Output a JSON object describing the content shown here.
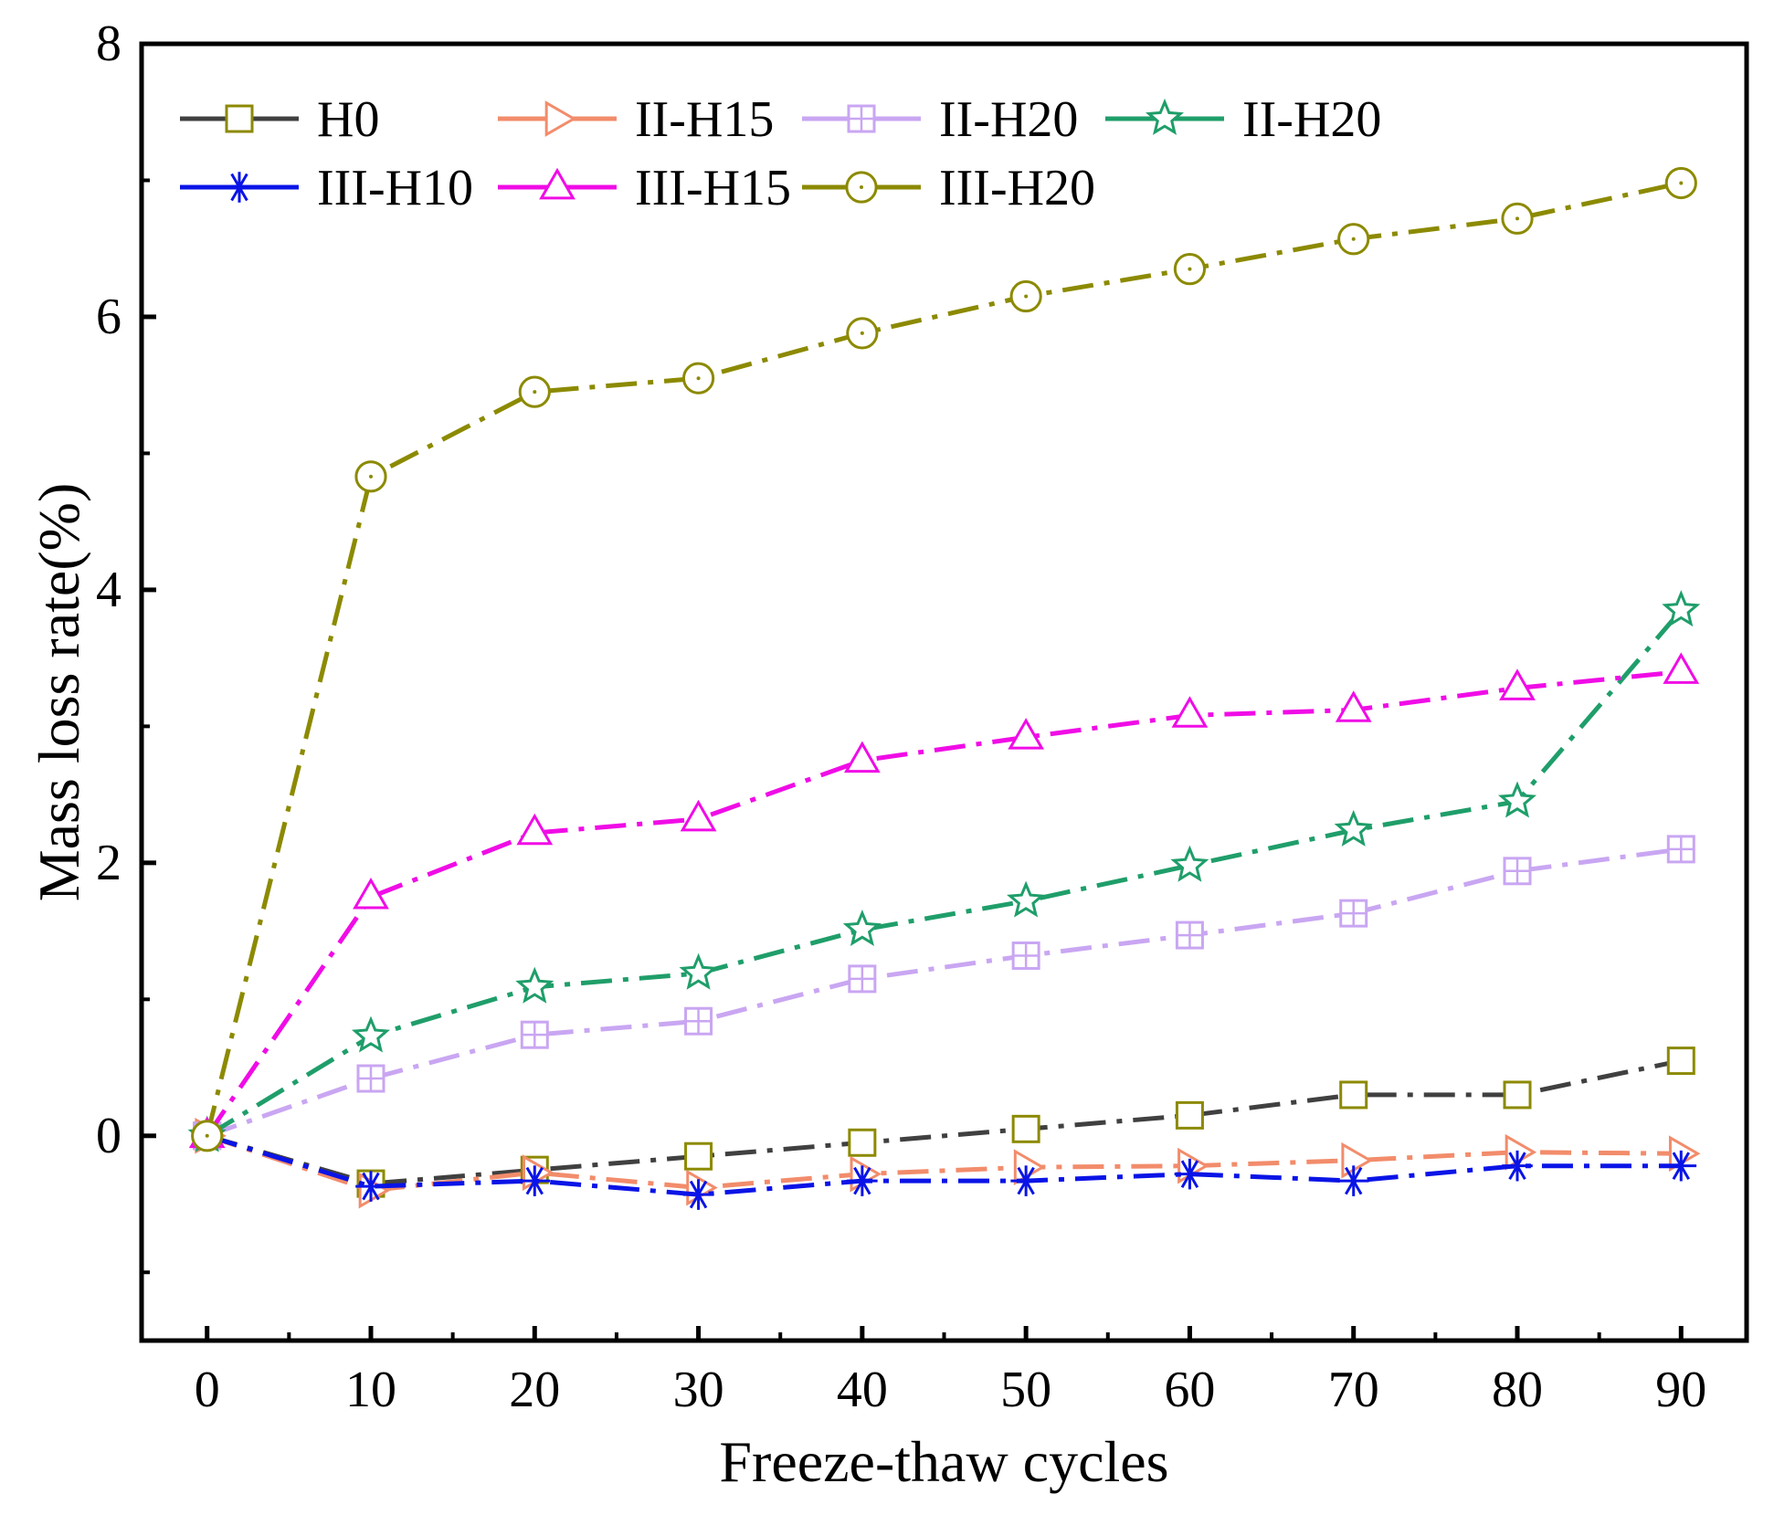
{
  "chart_data": {
    "type": "line",
    "title": "",
    "xlabel": "Freeze-thaw cycles",
    "ylabel": "Mass loss rate(%)",
    "xlim": [
      -4,
      94
    ],
    "ylim": [
      -1.5,
      8
    ],
    "x": [
      0,
      10,
      20,
      30,
      40,
      50,
      60,
      70,
      80,
      90
    ],
    "xticks": [
      0,
      10,
      20,
      30,
      40,
      50,
      60,
      70,
      80,
      90
    ],
    "xtick_labels": [
      "0",
      "10",
      "20",
      "30",
      "40",
      "50",
      "60",
      "70",
      "80",
      "90"
    ],
    "yticks": [
      0,
      2,
      4,
      6,
      8
    ],
    "ytick_labels": [
      "0",
      "2",
      "4",
      "6",
      "8"
    ],
    "grid": false,
    "legend_position": "top-left",
    "series": [
      {
        "name": "H0",
        "marker": "square",
        "line_color": "#404040",
        "marker_color": "#8c8a00",
        "dash": "dashdot",
        "values": [
          0,
          -0.35,
          -0.25,
          -0.15,
          -0.05,
          0.05,
          0.15,
          0.3,
          0.3,
          0.55
        ]
      },
      {
        "name": "II-H15",
        "marker": "triangle-right",
        "line_color": "#f28c6b",
        "marker_color": "#f28c6b",
        "dash": "dashdot",
        "values": [
          0,
          -0.4,
          -0.27,
          -0.38,
          -0.28,
          -0.23,
          -0.22,
          -0.18,
          -0.12,
          -0.13
        ]
      },
      {
        "name": "II-H20",
        "marker": "square-plus",
        "line_color": "#c9a6f2",
        "marker_color": "#c9a6f2",
        "dash": "dashdot",
        "values": [
          0,
          0.42,
          0.74,
          0.84,
          1.15,
          1.32,
          1.47,
          1.63,
          1.94,
          2.1
        ]
      },
      {
        "name": "II-H20",
        "marker": "star",
        "line_color": "#1f9e6a",
        "marker_color": "#1f9e6a",
        "dash": "dashdot",
        "values": [
          0,
          0.73,
          1.09,
          1.19,
          1.51,
          1.72,
          1.98,
          2.24,
          2.45,
          3.85
        ]
      },
      {
        "name": "III-H10",
        "marker": "asterisk",
        "line_color": "#0a14e6",
        "marker_color": "#0a14e6",
        "dash": "dashdot",
        "values": [
          0,
          -0.37,
          -0.33,
          -0.43,
          -0.33,
          -0.33,
          -0.28,
          -0.33,
          -0.22,
          -0.22
        ]
      },
      {
        "name": "III-H15",
        "marker": "triangle-up",
        "line_color": "#f00ce6",
        "marker_color": "#f00ce6",
        "dash": "dashdot",
        "values": [
          0,
          1.75,
          2.22,
          2.32,
          2.75,
          2.92,
          3.08,
          3.12,
          3.28,
          3.4
        ]
      },
      {
        "name": "III-H20",
        "marker": "circle",
        "line_color": "#8c8a00",
        "marker_color": "#8c8a00",
        "dash": "dashdot",
        "values": [
          0,
          4.83,
          5.45,
          5.55,
          5.88,
          6.15,
          6.35,
          6.57,
          6.72,
          6.98
        ]
      }
    ]
  }
}
